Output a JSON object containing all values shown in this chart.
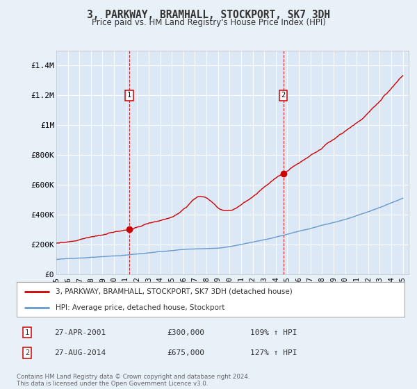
{
  "title": "3, PARKWAY, BRAMHALL, STOCKPORT, SK7 3DH",
  "subtitle": "Price paid vs. HM Land Registry's House Price Index (HPI)",
  "background_color": "#e8f0f8",
  "plot_bg_color": "#dce8f5",
  "ylim": [
    0,
    1500000
  ],
  "yticks": [
    0,
    200000,
    400000,
    600000,
    800000,
    1000000,
    1200000,
    1400000
  ],
  "ytick_labels": [
    "£0",
    "£200K",
    "£400K",
    "£600K",
    "£800K",
    "£1M",
    "£1.2M",
    "£1.4M"
  ],
  "sale1_date_num": 2001.32,
  "sale1_price": 300000,
  "sale1_label": "1",
  "sale1_date_str": "27-APR-2001",
  "sale1_pct": "109% ↑ HPI",
  "sale2_date_num": 2014.65,
  "sale2_price": 675000,
  "sale2_label": "2",
  "sale2_date_str": "27-AUG-2014",
  "sale2_pct": "127% ↑ HPI",
  "house_color": "#cc0000",
  "hpi_color": "#6699cc",
  "legend_house": "3, PARKWAY, BRAMHALL, STOCKPORT, SK7 3DH (detached house)",
  "legend_hpi": "HPI: Average price, detached house, Stockport",
  "footer": "Contains HM Land Registry data © Crown copyright and database right 2024.\nThis data is licensed under the Open Government Licence v3.0.",
  "xmin": 1995.0,
  "xmax": 2025.5,
  "xticks": [
    1995,
    1996,
    1997,
    1998,
    1999,
    2000,
    2001,
    2002,
    2003,
    2004,
    2005,
    2006,
    2007,
    2008,
    2009,
    2010,
    2011,
    2012,
    2013,
    2014,
    2015,
    2016,
    2017,
    2018,
    2019,
    2020,
    2021,
    2022,
    2023,
    2024,
    2025
  ]
}
